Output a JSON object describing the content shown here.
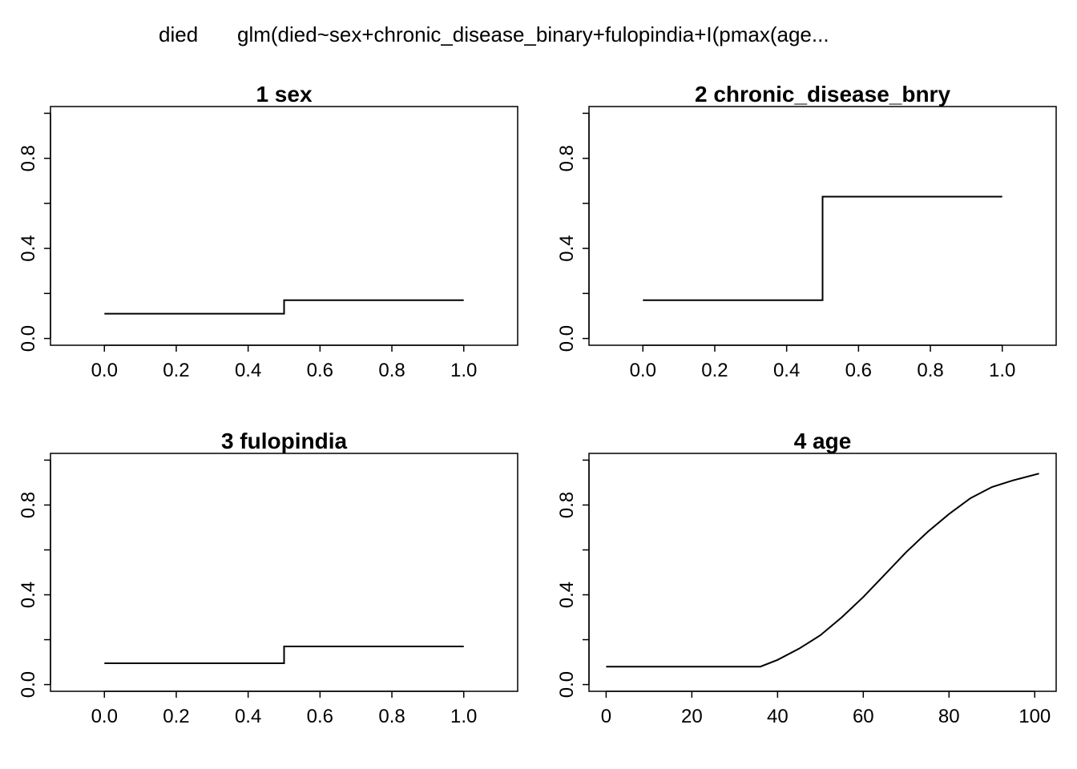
{
  "title": {
    "response": "died",
    "call": "glm(died~sex+chronic_disease_binary+fulopindia+I(pmax(age..."
  },
  "chart_data": [
    {
      "type": "line",
      "step": true,
      "title": "1  sex",
      "xlim": [
        -0.15,
        1.15
      ],
      "ylim": [
        -0.03,
        1.03
      ],
      "xticks": [
        0.0,
        0.2,
        0.4,
        0.6,
        0.8,
        1.0
      ],
      "xtick_labels": [
        "0.0",
        "0.2",
        "0.4",
        "0.6",
        "0.8",
        "1.0"
      ],
      "yticks": [
        0.0,
        0.2,
        0.4,
        0.6,
        0.8,
        1.0
      ],
      "ytick_labels": [
        "0.0",
        "",
        "0.4",
        "",
        "0.8",
        ""
      ],
      "x": [
        0.0,
        0.5,
        1.0
      ],
      "y": [
        0.11,
        0.17,
        0.17
      ]
    },
    {
      "type": "line",
      "step": true,
      "title": "2  chronic_disease_bnry",
      "xlim": [
        -0.15,
        1.15
      ],
      "ylim": [
        -0.03,
        1.03
      ],
      "xticks": [
        0.0,
        0.2,
        0.4,
        0.6,
        0.8,
        1.0
      ],
      "xtick_labels": [
        "0.0",
        "0.2",
        "0.4",
        "0.6",
        "0.8",
        "1.0"
      ],
      "yticks": [
        0.0,
        0.2,
        0.4,
        0.6,
        0.8,
        1.0
      ],
      "ytick_labels": [
        "0.0",
        "",
        "0.4",
        "",
        "0.8",
        ""
      ],
      "x": [
        0.0,
        0.5,
        1.0
      ],
      "y": [
        0.17,
        0.63,
        0.63
      ]
    },
    {
      "type": "line",
      "step": true,
      "title": "3  fulopindia",
      "xlim": [
        -0.15,
        1.15
      ],
      "ylim": [
        -0.03,
        1.03
      ],
      "xticks": [
        0.0,
        0.2,
        0.4,
        0.6,
        0.8,
        1.0
      ],
      "xtick_labels": [
        "0.0",
        "0.2",
        "0.4",
        "0.6",
        "0.8",
        "1.0"
      ],
      "yticks": [
        0.0,
        0.2,
        0.4,
        0.6,
        0.8,
        1.0
      ],
      "ytick_labels": [
        "0.0",
        "",
        "0.4",
        "",
        "0.8",
        ""
      ],
      "x": [
        0.0,
        0.5,
        1.0
      ],
      "y": [
        0.095,
        0.17,
        0.17
      ]
    },
    {
      "type": "line",
      "step": false,
      "title": "4  age",
      "xlim": [
        -4,
        105
      ],
      "ylim": [
        -0.03,
        1.03
      ],
      "xticks": [
        0,
        20,
        40,
        60,
        80,
        100
      ],
      "xtick_labels": [
        "0",
        "20",
        "40",
        "60",
        "80",
        "100"
      ],
      "yticks": [
        0.0,
        0.2,
        0.4,
        0.6,
        0.8,
        1.0
      ],
      "ytick_labels": [
        "0.0",
        "",
        "0.4",
        "",
        "0.8",
        ""
      ],
      "x": [
        0,
        10,
        20,
        30,
        36,
        40,
        45,
        50,
        55,
        60,
        65,
        70,
        75,
        80,
        85,
        90,
        95,
        101
      ],
      "y": [
        0.08,
        0.08,
        0.08,
        0.08,
        0.08,
        0.11,
        0.16,
        0.22,
        0.3,
        0.39,
        0.49,
        0.59,
        0.68,
        0.76,
        0.83,
        0.88,
        0.91,
        0.94
      ]
    }
  ]
}
